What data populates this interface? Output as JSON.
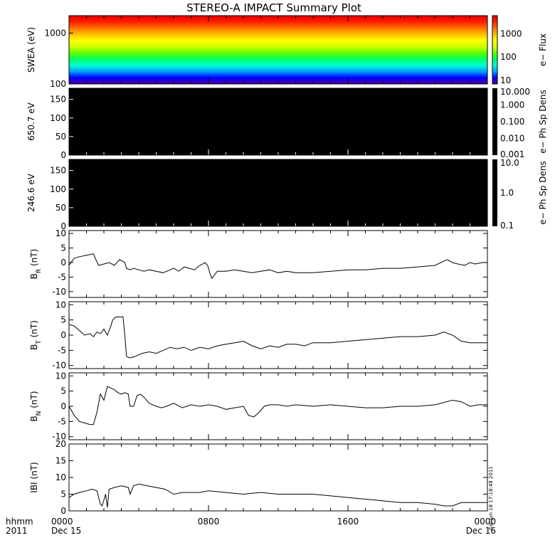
{
  "title": "STEREO-A IMPACT Summary Plot",
  "stamp": "Sat Jun 18 17:18:48 2011",
  "time_axis": {
    "hhmm_label": "hhmm",
    "year_label": "2011",
    "ticks": [
      {
        "hour": 0,
        "label": "0000",
        "date": "Dec 15"
      },
      {
        "hour": 8,
        "label": "0800",
        "date": ""
      },
      {
        "hour": 16,
        "label": "1600",
        "date": ""
      },
      {
        "hour": 24,
        "label": "0000",
        "date": "Dec 16"
      }
    ]
  },
  "chart_data": [
    {
      "type": "heatmap",
      "panel": "swea",
      "ylabel": "SWEA (eV)",
      "y_scale": "log",
      "ylim": [
        100,
        2200
      ],
      "yticks": [
        {
          "value": 100,
          "label": "100"
        },
        {
          "value": 1000,
          "label": "1000"
        }
      ],
      "colorbar": {
        "label": "e− Flux",
        "scale": "log",
        "range": [
          7,
          6000
        ],
        "ticks": [
          {
            "value": 10,
            "label": "10"
          },
          {
            "value": 100,
            "label": "100"
          },
          {
            "value": 1000,
            "label": "1000"
          }
        ],
        "colors": [
          "#5000a0",
          "#0000ff",
          "#00a0ff",
          "#00ffd0",
          "#00ff60",
          "#60ff00",
          "#d0ff00",
          "#ffff00",
          "#ffc000",
          "#ff7000",
          "#ff2000",
          "#e00000"
        ]
      },
      "xlim": [
        0,
        24
      ]
    },
    {
      "type": "heatmap",
      "panel": "ped650",
      "ylabel": "650.7 eV",
      "ylim": [
        0,
        180
      ],
      "yticks": [
        {
          "value": 0,
          "label": "0"
        },
        {
          "value": 50,
          "label": "50"
        },
        {
          "value": 100,
          "label": "100"
        },
        {
          "value": 150,
          "label": "150"
        }
      ],
      "fill": "#000000",
      "colorbar": {
        "label": "e− Ph Sp Dens",
        "scale": "log",
        "range": [
          0.001,
          10
        ],
        "ticks": [
          {
            "value": 10,
            "label": "10.000"
          },
          {
            "value": 1,
            "label": "1.000"
          },
          {
            "value": 0.1,
            "label": "0.100"
          },
          {
            "value": 0.01,
            "label": "0.010"
          },
          {
            "value": 0.001,
            "label": "0.001"
          }
        ]
      },
      "xlim": [
        0,
        24
      ]
    },
    {
      "type": "heatmap",
      "panel": "ped246",
      "ylabel": "246.6 eV",
      "ylim": [
        0,
        180
      ],
      "yticks": [
        {
          "value": 0,
          "label": "0"
        },
        {
          "value": 50,
          "label": "50"
        },
        {
          "value": 100,
          "label": "100"
        },
        {
          "value": 150,
          "label": "150"
        }
      ],
      "fill": "#000000",
      "colorbar": {
        "label": "e− Ph Sp Dens",
        "scale": "log",
        "range": [
          0.1,
          10
        ],
        "ticks": [
          {
            "value": 10,
            "label": "10.0"
          },
          {
            "value": 1,
            "label": "1.0"
          },
          {
            "value": 0.1,
            "label": "0.1"
          }
        ]
      },
      "xlim": [
        0,
        24
      ]
    },
    {
      "type": "line",
      "panel": "br",
      "ylabel_base": "B",
      "ylabel_sub": "R",
      "ylabel_unit": " (nT)",
      "ylim": [
        -12,
        11
      ],
      "yticks": [
        -10,
        -5,
        0,
        5,
        10
      ],
      "xlim": [
        0,
        24
      ],
      "x": [
        0,
        0.3,
        0.6,
        1.0,
        1.4,
        1.5,
        1.7,
        2.0,
        2.3,
        2.6,
        2.9,
        3.2,
        3.3,
        3.5,
        3.7,
        4.0,
        4.3,
        4.6,
        5.0,
        5.4,
        5.8,
        6.0,
        6.3,
        6.6,
        6.9,
        7.2,
        7.5,
        7.8,
        7.95,
        8.1,
        8.2,
        8.5,
        9.0,
        9.5,
        10.0,
        10.5,
        11.0,
        11.5,
        12.0,
        12.5,
        13.0,
        14.0,
        15.0,
        16.0,
        17.0,
        18.0,
        19.0,
        20.0,
        21.0,
        21.5,
        21.7,
        22.0,
        22.3,
        22.7,
        23.0,
        23.3,
        23.7,
        24.0
      ],
      "values": [
        -1,
        1.5,
        2,
        2.5,
        3,
        1.5,
        -1,
        -0.5,
        0,
        -1,
        1,
        0,
        -2,
        -2.5,
        -2,
        -2.5,
        -3,
        -2.5,
        -3,
        -3.5,
        -2.5,
        -2,
        -3,
        -1.5,
        -2,
        -2.5,
        -1,
        0,
        -1,
        -4,
        -5.5,
        -3,
        -3,
        -2.5,
        -3,
        -3.5,
        -3,
        -2.5,
        -3.5,
        -3,
        -3.5,
        -3.5,
        -3,
        -2.5,
        -2.5,
        -2,
        -2,
        -1.5,
        -1,
        0.5,
        1,
        0,
        -0.5,
        -1,
        0,
        -0.5,
        0,
        0
      ]
    },
    {
      "type": "line",
      "panel": "bt",
      "ylabel_base": "B",
      "ylabel_sub": "T",
      "ylabel_unit": " (nT)",
      "ylim": [
        -11,
        11
      ],
      "yticks": [
        -10,
        -5,
        0,
        5,
        10
      ],
      "xlim": [
        0,
        24
      ],
      "x": [
        0,
        0.3,
        0.6,
        0.9,
        1.2,
        1.4,
        1.6,
        1.8,
        2.0,
        2.2,
        2.4,
        2.5,
        2.7,
        2.9,
        3.1,
        3.2,
        3.3,
        3.5,
        3.8,
        4.2,
        4.6,
        5.0,
        5.4,
        5.8,
        6.2,
        6.6,
        7.0,
        7.5,
        8.0,
        8.5,
        9.0,
        9.5,
        10.0,
        10.5,
        11.0,
        11.5,
        12.0,
        12.5,
        13.0,
        13.5,
        14.0,
        15.0,
        16.0,
        17.0,
        18.0,
        19.0,
        20.0,
        21.0,
        21.5,
        22.0,
        22.5,
        23.0,
        23.5,
        24.0
      ],
      "values": [
        3.5,
        3,
        1.5,
        0,
        0.5,
        -0.5,
        1,
        0.5,
        2,
        0,
        3,
        5,
        6,
        6,
        6,
        0,
        -7,
        -7.5,
        -7,
        -6,
        -5.5,
        -6,
        -5,
        -4,
        -4.5,
        -4,
        -5,
        -4,
        -4.5,
        -3.5,
        -3,
        -2.5,
        -2,
        -3.5,
        -4.5,
        -3.5,
        -4,
        -3,
        -3,
        -3.5,
        -2.5,
        -2.5,
        -2,
        -1.5,
        -1,
        -0.5,
        -0.5,
        0,
        1,
        0,
        -2,
        -2.5,
        -2.5,
        -2.5
      ]
    },
    {
      "type": "line",
      "panel": "bn",
      "ylabel_base": "B",
      "ylabel_sub": "N",
      "ylabel_unit": " (nT)",
      "ylim": [
        -11,
        11
      ],
      "yticks": [
        -10,
        -5,
        0,
        5,
        10
      ],
      "xlim": [
        0,
        24
      ],
      "x": [
        0,
        0.3,
        0.6,
        0.9,
        1.2,
        1.4,
        1.6,
        1.8,
        2.0,
        2.2,
        2.4,
        2.6,
        2.8,
        3.0,
        3.2,
        3.4,
        3.5,
        3.7,
        3.9,
        4.1,
        4.3,
        4.6,
        5.0,
        5.3,
        5.6,
        6.0,
        6.5,
        7.0,
        7.5,
        8.0,
        8.5,
        9.0,
        9.5,
        10.0,
        10.3,
        10.6,
        10.9,
        11.2,
        11.5,
        12.0,
        12.5,
        13.0,
        14.0,
        15.0,
        16.0,
        17.0,
        18.0,
        19.0,
        20.0,
        21.0,
        22.0,
        22.5,
        23.0,
        23.5,
        24.0
      ],
      "values": [
        0,
        -3,
        -5,
        -5.5,
        -6,
        -6,
        -2,
        4,
        2,
        6.5,
        6,
        5.5,
        4.5,
        4,
        4.5,
        4,
        0,
        0,
        3.5,
        4,
        3,
        1,
        0,
        -0.5,
        0,
        1,
        -0.5,
        0.5,
        0,
        0.5,
        0,
        -1,
        -0.5,
        0,
        -3,
        -3.5,
        -2,
        0,
        0.5,
        0.5,
        0,
        0.5,
        0,
        0.5,
        0,
        -0.5,
        -0.5,
        0,
        0,
        0.5,
        2,
        1.5,
        0,
        0.5,
        0.5
      ]
    },
    {
      "type": "line",
      "panel": "bmag",
      "ylabel_base": "IBI",
      "ylabel_sub": "",
      "ylabel_unit": " (nT)",
      "ylim": [
        0,
        20
      ],
      "yticks": [
        0,
        5,
        10,
        15,
        20
      ],
      "xlim": [
        0,
        24
      ],
      "x": [
        0,
        0.3,
        0.6,
        1.0,
        1.3,
        1.6,
        1.8,
        1.9,
        2.1,
        2.2,
        2.3,
        2.6,
        3.0,
        3.4,
        3.5,
        3.7,
        4.0,
        4.5,
        5.0,
        5.5,
        6.0,
        6.5,
        7.0,
        7.5,
        8.0,
        9.0,
        10.0,
        11.0,
        12.0,
        13.0,
        14.0,
        15.0,
        16.0,
        17.0,
        18.0,
        19.0,
        20.0,
        21.0,
        21.5,
        22.0,
        22.5,
        23.0,
        23.5,
        24.0
      ],
      "values": [
        4,
        5,
        5.5,
        6,
        6.5,
        6,
        2,
        1.5,
        5,
        1,
        6.5,
        7,
        7.5,
        7,
        5,
        7.5,
        8,
        7.5,
        7,
        6.5,
        5,
        5.5,
        5.5,
        5.5,
        6,
        5.5,
        5,
        5.5,
        5,
        5,
        5,
        4.5,
        4,
        3.5,
        3,
        2.5,
        2.5,
        2,
        1.5,
        1.5,
        2.5,
        2.5,
        2.5,
        2.5
      ]
    }
  ]
}
